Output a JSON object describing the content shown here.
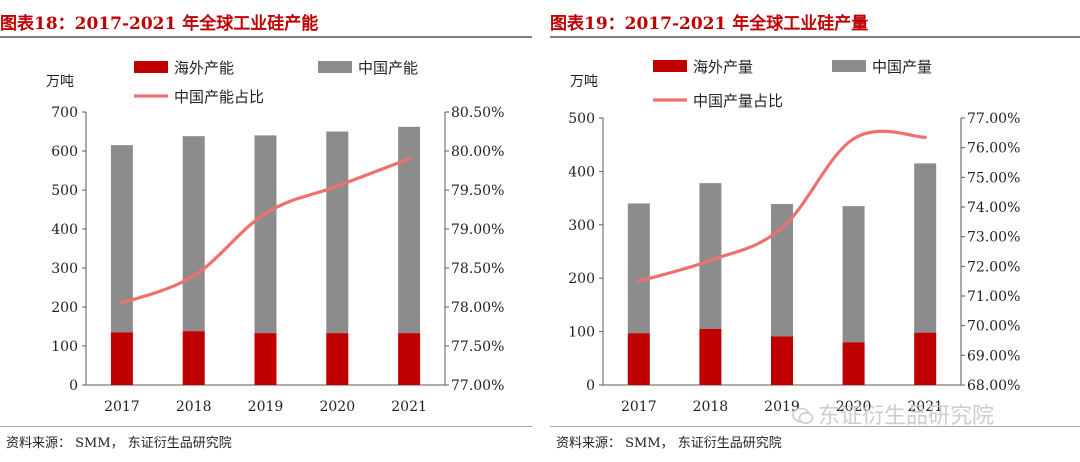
{
  "chart_data": [
    {
      "type": "bar",
      "title": "图表18：2017-2021 年全球工业硅产能",
      "unit_label": "万吨",
      "categories": [
        "2017",
        "2018",
        "2019",
        "2020",
        "2021"
      ],
      "stacked": true,
      "series": [
        {
          "name": "海外产能",
          "values": [
            135,
            138,
            133,
            133,
            133
          ],
          "color": "#c00000",
          "axis": "left"
        },
        {
          "name": "中国产能",
          "values": [
            480,
            500,
            507,
            517,
            529
          ],
          "color": "#8c8c8c",
          "axis": "left"
        },
        {
          "name": "中国产能占比",
          "type": "line",
          "values": [
            78.05,
            78.4,
            79.2,
            79.55,
            79.9
          ],
          "color": "#f07070",
          "axis": "right"
        }
      ],
      "ylim": [
        0,
        700
      ],
      "yticks": [
        "0",
        "100",
        "200",
        "300",
        "400",
        "500",
        "600",
        "700"
      ],
      "y2lim": [
        77.0,
        80.5
      ],
      "y2ticks": [
        "77.00%",
        "77.50%",
        "78.00%",
        "78.50%",
        "79.00%",
        "79.50%",
        "80.00%",
        "80.50%"
      ],
      "source": "资料来源： SMM， 东证衍生品研究院"
    },
    {
      "type": "bar",
      "title": "图表19：2017-2021 年全球工业硅产量",
      "unit_label": "万吨",
      "categories": [
        "2017",
        "2018",
        "2019",
        "2020",
        "2021"
      ],
      "stacked": true,
      "series": [
        {
          "name": "海外产量",
          "values": [
            97,
            105,
            91,
            80,
            98
          ],
          "color": "#c00000",
          "axis": "left"
        },
        {
          "name": "中国产量",
          "values": [
            243,
            273,
            248,
            255,
            317
          ],
          "color": "#8c8c8c",
          "axis": "left"
        },
        {
          "name": "中国产量占比",
          "type": "line",
          "values": [
            71.5,
            72.2,
            73.3,
            76.3,
            76.35
          ],
          "color": "#f07070",
          "axis": "right"
        }
      ],
      "ylim": [
        0,
        500
      ],
      "yticks": [
        "0",
        "100",
        "200",
        "300",
        "400",
        "500"
      ],
      "y2lim": [
        68.0,
        77.0
      ],
      "y2ticks": [
        "68.00%",
        "69.00%",
        "70.00%",
        "71.00%",
        "72.00%",
        "73.00%",
        "74.00%",
        "75.00%",
        "76.00%",
        "77.00%"
      ],
      "source": "资料来源： SMM， 东证衍生品研究院"
    }
  ],
  "watermark": "东证衍生品研究院"
}
